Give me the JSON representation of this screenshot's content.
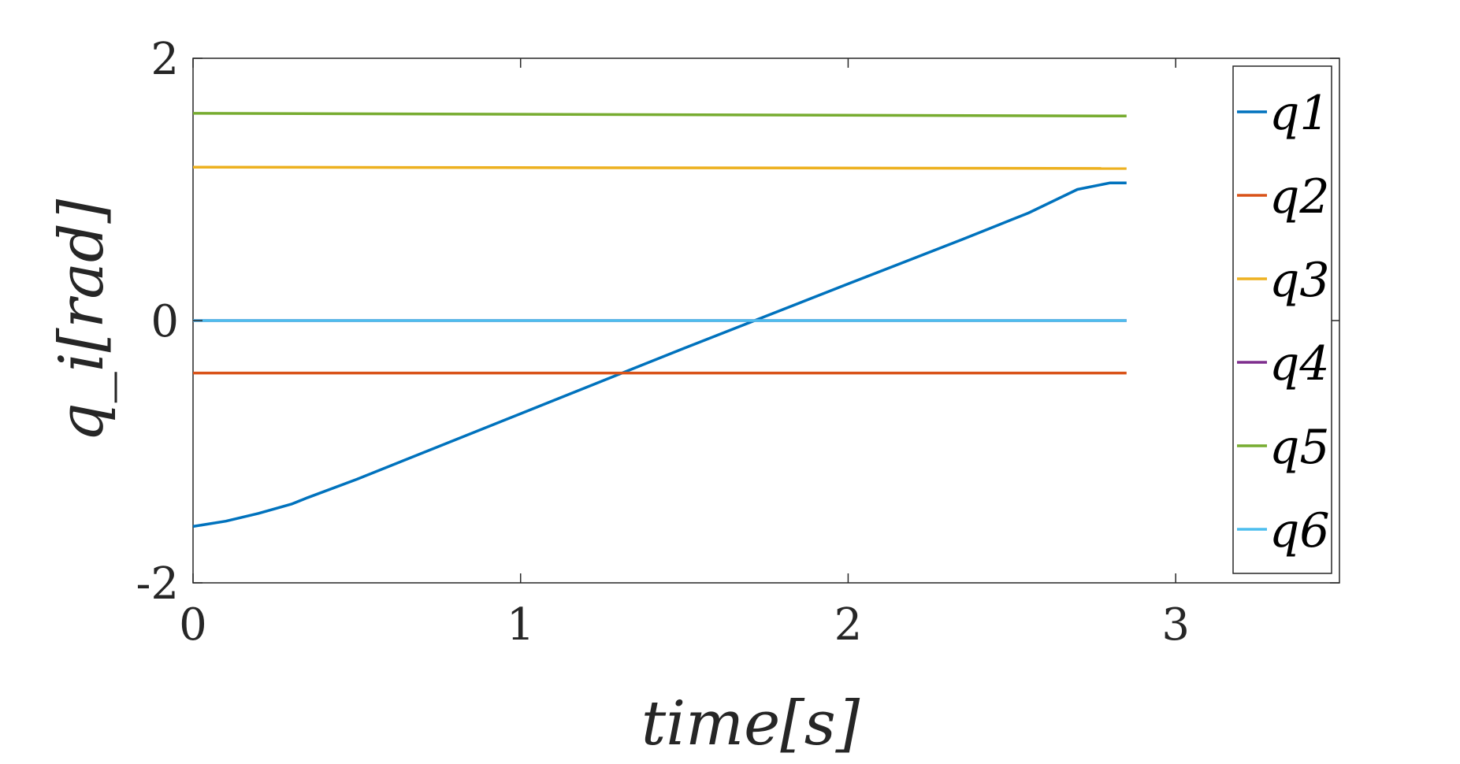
{
  "chart_data": {
    "type": "line",
    "xlabel": "time[s]",
    "ylabel": "q_i[rad]",
    "xlim": [
      0,
      3.5
    ],
    "ylim": [
      -2,
      2
    ],
    "xticks": [
      "0",
      "1",
      "2",
      "3"
    ],
    "yticks": [
      "-2",
      "0",
      "2"
    ],
    "grid": false,
    "legend_position": "top-right",
    "series": [
      {
        "name": "q1",
        "color": "#0072BD",
        "x": [
          0,
          0.1,
          0.2,
          0.3,
          0.35,
          0.5,
          1.0,
          1.5,
          2.0,
          2.35,
          2.5,
          2.55,
          2.7,
          2.8,
          2.85
        ],
        "y": [
          -1.57,
          -1.53,
          -1.47,
          -1.4,
          -1.35,
          -1.21,
          -0.71,
          -0.21,
          0.28,
          0.62,
          0.77,
          0.82,
          1.0,
          1.05,
          1.05
        ]
      },
      {
        "name": "q2",
        "color": "#D95319",
        "x": [
          0,
          2.85
        ],
        "y": [
          -0.4,
          -0.4
        ]
      },
      {
        "name": "q3",
        "color": "#EDB120",
        "x": [
          0,
          2.85
        ],
        "y": [
          1.17,
          1.16
        ]
      },
      {
        "name": "q4",
        "color": "#7E2F8E",
        "x": [
          0,
          2.85
        ],
        "y": [
          0.0,
          0.0
        ]
      },
      {
        "name": "q5",
        "color": "#77AC30",
        "x": [
          0,
          2.85
        ],
        "y": [
          1.58,
          1.56
        ]
      },
      {
        "name": "q6",
        "color": "#4DBEEE",
        "x": [
          0,
          2.85
        ],
        "y": [
          0.0,
          0.0
        ]
      }
    ]
  }
}
